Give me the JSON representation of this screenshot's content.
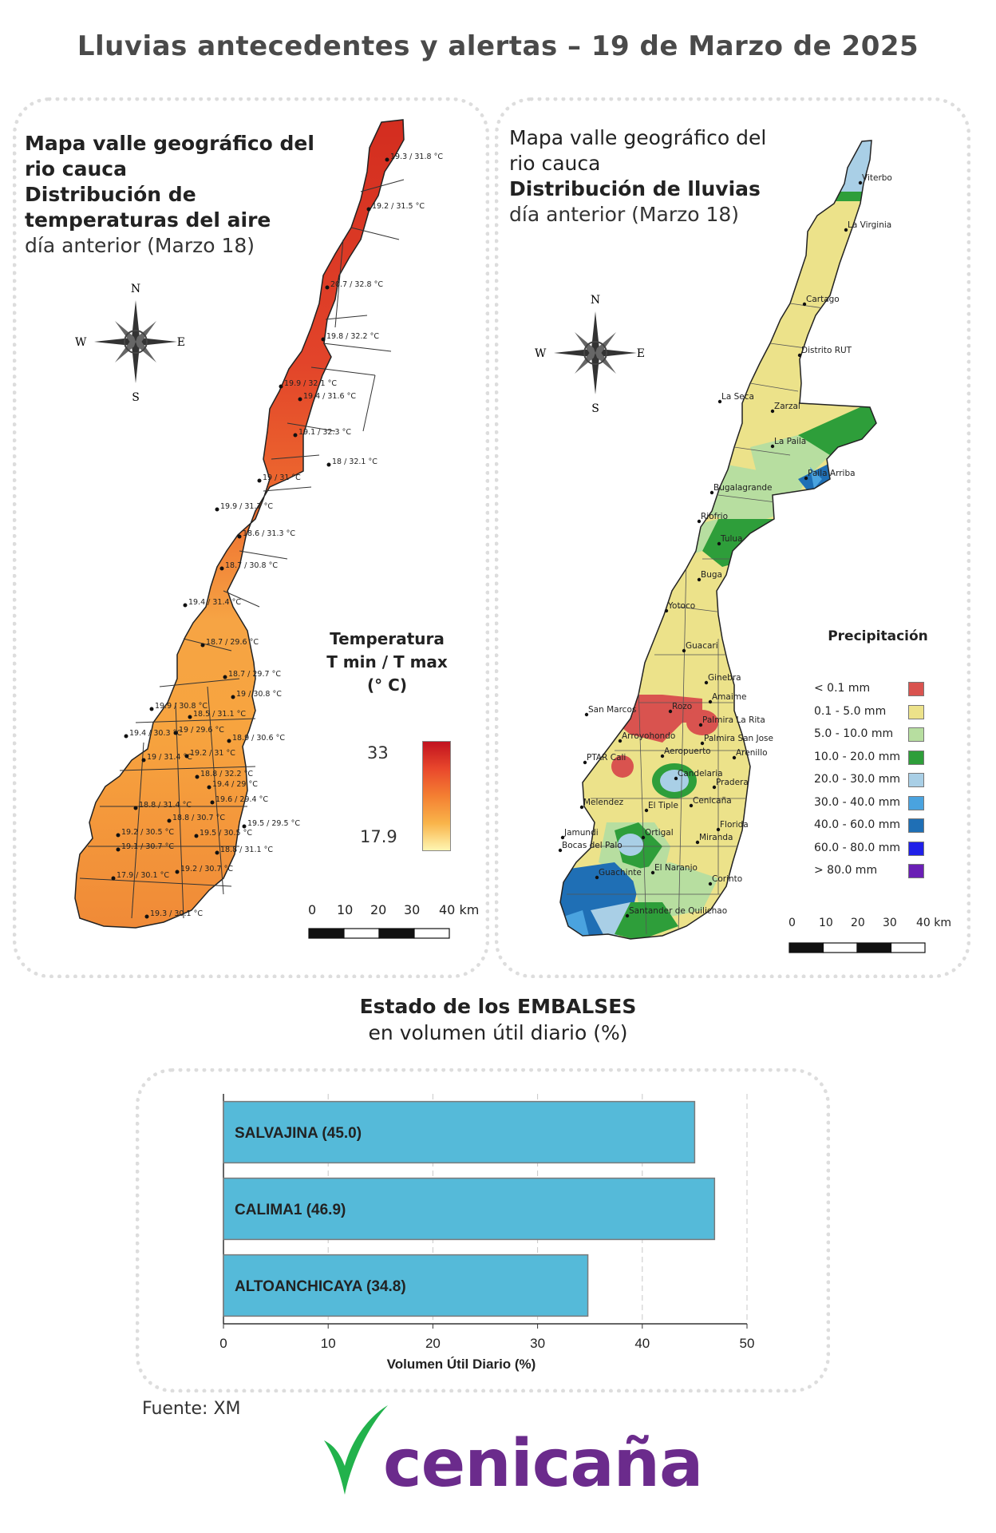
{
  "main_title": "Lluvias antecedentes y alertas – 19 de Marzo de 2025",
  "temp_map": {
    "title_lines_normal_top": [
      "Mapa valle geográfico del",
      "rio cauca"
    ],
    "title_lines_bold": [
      "Distribución de",
      "temperaturas del aire"
    ],
    "subtitle": "día anterior (Marzo 18)",
    "compass": {
      "n": "N",
      "s": "S",
      "e": "E",
      "w": "W"
    },
    "legend_title_lines": [
      "Temperatura",
      "T min / T max",
      "(° C)"
    ],
    "legend_max": "33",
    "legend_min": "17.9",
    "scale_labels": [
      "0",
      "10",
      "20",
      "30",
      "40 km"
    ],
    "station_labels": [
      "19.3 / 31.8 °C",
      "19.2 / 31.5 °C",
      "20.7 / 32.8 °C",
      "19.8 / 32.2 °C",
      "19.9 / 32.1 °C",
      "19.4 / 31.6 °C",
      "19.1 / 32.3 °C",
      "18 / 32.1 °C",
      "19 / 31 °C",
      "19.9 / 31.7 °C",
      "18.6 / 31.3 °C",
      "18.7 / 30.8 °C",
      "19.4 / 31.4 °C",
      "18.7 / 29.6 °C",
      "18.7 / 29.7 °C",
      "19.9 / 30.8 °C",
      "18.5 / 31.1 °C",
      "19 / 30.8 °C",
      "19.4 / 30.3 °C",
      "19 / 29.6 °C",
      "18.9 / 30.6 °C",
      "19 / 31.4 °C",
      "19.2 / 31 °C",
      "18.8 / 32.2 °C",
      "19.4 / 29 °C",
      "18.8 / 31.4 °C",
      "19.6 / 29.4 °C",
      "18.8 / 30.7 °C",
      "19.5 / 29.5 °C",
      "19.2 / 30.5 °C",
      "19.1 / 30.7 °C",
      "19.5 / 30.5 °C",
      "18.8 / 31.1 °C",
      "17.9 / 30.1 °C",
      "19.2 / 30.7 °C",
      "19.3 / 30.1 °C"
    ]
  },
  "rain_map": {
    "title_lines_normal_top": [
      "Mapa valle geográfico del",
      "rio cauca"
    ],
    "title_lines_bold": [
      "Distribución de lluvias"
    ],
    "subtitle": "día anterior (Marzo 18)",
    "compass": {
      "n": "N",
      "s": "S",
      "e": "E",
      "w": "W"
    },
    "legend_title": "Precipitación",
    "legend_items": [
      {
        "label": "< 0.1 mm",
        "color": "#d9534f"
      },
      {
        "label": "0.1 - 5.0 mm",
        "color": "#ece28a"
      },
      {
        "label": "5.0 - 10.0 mm",
        "color": "#b7dea0"
      },
      {
        "label": "10.0 - 20.0 mm",
        "color": "#2e9e3a"
      },
      {
        "label": "20.0 - 30.0 mm",
        "color": "#a9cfe6"
      },
      {
        "label": "30.0 - 40.0 mm",
        "color": "#4aa3df"
      },
      {
        "label": "40.0 - 60.0 mm",
        "color": "#1f6fb5"
      },
      {
        "label": "60.0 - 80.0 mm",
        "color": "#2020e8"
      },
      {
        "label": "> 80.0 mm",
        "color": "#6a1fb5"
      }
    ],
    "scale_labels": [
      "0",
      "10",
      "20",
      "30",
      "40 km"
    ],
    "towns": [
      "Viterbo",
      "La Virginia",
      "Cartago",
      "Distrito RUT",
      "La Seca",
      "Zarzal",
      "La Paila",
      "Paila Arriba",
      "Bugalagrande",
      "Riofrio",
      "Tulua",
      "Buga",
      "Yotoco",
      "Guacari",
      "Ginebra",
      "Amaime",
      "San Marcos",
      "Rozo",
      "Palmira La Rita",
      "Arroyohondo",
      "Palmira San Jose",
      "Aeropuerto",
      "Arenillo",
      "PTAR Cali",
      "Candelaria",
      "Pradera",
      "Melendez",
      "El Tiple",
      "Cenicaña",
      "Florida",
      "Jamundi",
      "Bocas del Palo",
      "Ortigal",
      "Miranda",
      "El Naranjo",
      "Guachinte",
      "Corinto",
      "Santander de Quilichao"
    ]
  },
  "embalses": {
    "title_bold": "Estado de los EMBALSES",
    "title_normal": "en volumen útil diario (%)",
    "chart_data": {
      "type": "bar",
      "orientation": "horizontal",
      "categories": [
        "SALVAJINA",
        "CALIMA1",
        "ALTOANCHICAYA"
      ],
      "values": [
        45.0,
        46.9,
        34.8
      ],
      "bar_labels": [
        "SALVAJINA (45.0)",
        "CALIMA1 (46.9)",
        "ALTOANCHICAYA (34.8)"
      ],
      "xlabel": "Volumen Útil Diario (%)",
      "xlim": [
        0,
        50
      ],
      "xticks": [
        "0",
        "10",
        "20",
        "30",
        "40",
        "50"
      ],
      "grid": true,
      "bar_color": "#55bad9"
    }
  },
  "fuente": "Fuente: XM",
  "logo_text": "cenicaña"
}
